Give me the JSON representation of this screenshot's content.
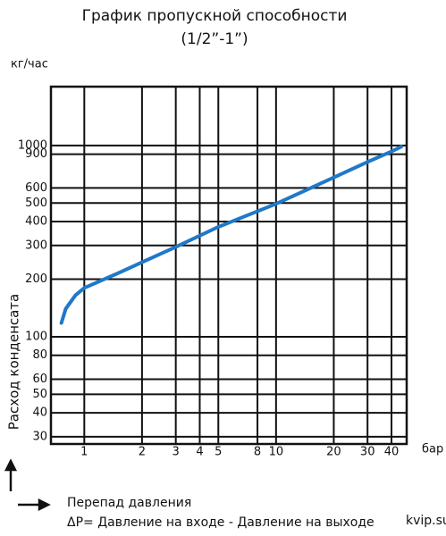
{
  "chart_data": {
    "type": "line",
    "title": "График пропускной способности",
    "subtitle": "(1/2”-1”)",
    "y_unit": "кг/час",
    "y_label": "Расход конденсата",
    "x_unit": "бар",
    "x_label": "Перепад давления",
    "note": "ΔР= Давление на входе - Давление на выходе",
    "watermark": "kvip.su",
    "x_scale": "log",
    "y_scale": "log",
    "grid": true,
    "xlim": [
      0.67,
      48
    ],
    "ylim": [
      27.5,
      2030
    ],
    "xticks": [
      1,
      2,
      3,
      4,
      5,
      8,
      10,
      20,
      30,
      40
    ],
    "yticks": [
      30,
      40,
      50,
      60,
      80,
      100,
      200,
      300,
      400,
      500,
      600,
      900,
      1000
    ],
    "series": [
      {
        "color": "#1f78c8",
        "x": [
          0.76,
          0.8,
          0.9,
          1,
          1.5,
          2,
          3,
          5,
          10,
          20,
          30,
          40,
          45
        ],
        "values": [
          118,
          140,
          165,
          180,
          215,
          245,
          295,
          375,
          495,
          680,
          820,
          930,
          985
        ]
      }
    ]
  }
}
